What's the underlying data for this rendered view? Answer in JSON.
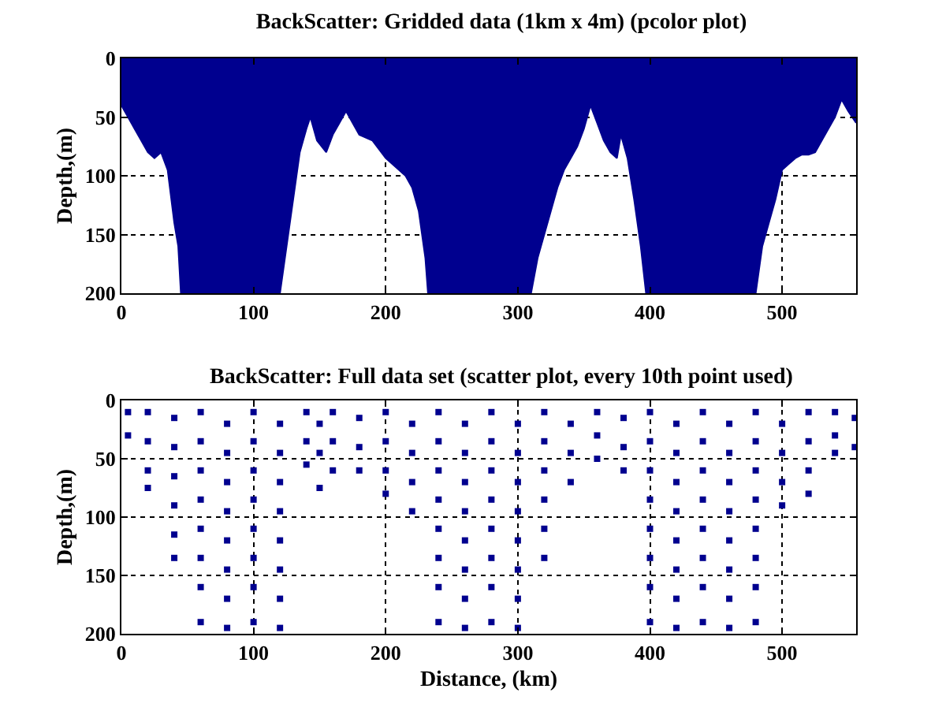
{
  "chart_data": [
    {
      "type": "area",
      "title": "BackScatter: Gridded data (1km x 4m) (pcolor plot)",
      "ylabel": "Depth,(m)",
      "x": [
        0,
        5,
        10,
        15,
        20,
        25,
        30,
        35,
        40,
        43,
        45,
        120,
        125,
        130,
        135,
        140,
        143,
        148,
        155,
        160,
        165,
        170,
        175,
        180,
        190,
        200,
        210,
        215,
        220,
        225,
        230,
        232,
        310,
        315,
        320,
        325,
        330,
        335,
        340,
        345,
        350,
        355,
        360,
        365,
        370,
        375,
        378,
        383,
        388,
        393,
        397,
        480,
        485,
        490,
        495,
        500,
        505,
        510,
        515,
        520,
        525,
        530,
        540,
        545,
        550,
        556
      ],
      "values": [
        40,
        50,
        60,
        70,
        80,
        85,
        80,
        95,
        140,
        160,
        200,
        200,
        160,
        120,
        80,
        60,
        50,
        70,
        80,
        65,
        55,
        45,
        55,
        65,
        70,
        85,
        95,
        100,
        110,
        130,
        170,
        200,
        200,
        170,
        150,
        130,
        110,
        95,
        85,
        75,
        60,
        40,
        55,
        70,
        80,
        85,
        65,
        85,
        120,
        160,
        200,
        200,
        160,
        140,
        120,
        95,
        90,
        85,
        82,
        82,
        80,
        70,
        50,
        35,
        45,
        55
      ],
      "color": "#00008f",
      "xlim": [
        0,
        556
      ],
      "ylim": [
        200,
        0
      ],
      "xticks": [
        0,
        100,
        200,
        300,
        400,
        500
      ],
      "yticks": [
        0,
        50,
        100,
        150,
        200
      ],
      "grid": true,
      "line_style": "dotted"
    },
    {
      "type": "scatter",
      "title": "BackScatter: Full data set (scatter plot, every 10th point used)",
      "xlabel": "Distance, (km)",
      "ylabel": "Depth,(m)",
      "x": [
        5,
        5,
        20,
        20,
        20,
        20,
        40,
        40,
        40,
        40,
        40,
        40,
        60,
        60,
        60,
        60,
        60,
        60,
        60,
        60,
        80,
        80,
        80,
        80,
        80,
        80,
        80,
        80,
        100,
        100,
        100,
        100,
        100,
        100,
        100,
        100,
        120,
        120,
        120,
        120,
        120,
        120,
        120,
        120,
        140,
        140,
        140,
        150,
        150,
        150,
        160,
        160,
        160,
        180,
        180,
        180,
        200,
        200,
        200,
        200,
        220,
        220,
        220,
        220,
        240,
        240,
        240,
        240,
        240,
        240,
        240,
        240,
        260,
        260,
        260,
        260,
        260,
        260,
        260,
        260,
        280,
        280,
        280,
        280,
        280,
        280,
        280,
        280,
        300,
        300,
        300,
        300,
        300,
        300,
        300,
        300,
        320,
        320,
        320,
        320,
        320,
        320,
        340,
        340,
        340,
        360,
        360,
        360,
        380,
        380,
        380,
        400,
        400,
        400,
        400,
        400,
        400,
        400,
        400,
        420,
        420,
        420,
        420,
        420,
        420,
        420,
        420,
        440,
        440,
        440,
        440,
        440,
        440,
        440,
        440,
        460,
        460,
        460,
        460,
        460,
        460,
        460,
        460,
        480,
        480,
        480,
        480,
        480,
        480,
        480,
        480,
        500,
        500,
        500,
        500,
        520,
        520,
        520,
        520,
        540,
        540,
        540,
        555,
        555
      ],
      "values": [
        10,
        30,
        10,
        35,
        60,
        75,
        15,
        40,
        65,
        90,
        115,
        135,
        10,
        35,
        60,
        85,
        110,
        135,
        160,
        190,
        20,
        45,
        70,
        95,
        120,
        145,
        170,
        195,
        10,
        35,
        60,
        85,
        110,
        135,
        160,
        190,
        20,
        45,
        70,
        95,
        120,
        145,
        170,
        195,
        10,
        35,
        55,
        20,
        45,
        75,
        10,
        35,
        60,
        15,
        40,
        60,
        10,
        35,
        60,
        80,
        20,
        45,
        70,
        95,
        10,
        35,
        60,
        85,
        110,
        135,
        160,
        190,
        20,
        45,
        70,
        95,
        120,
        145,
        170,
        195,
        10,
        35,
        60,
        85,
        110,
        135,
        160,
        190,
        20,
        45,
        70,
        95,
        120,
        145,
        170,
        195,
        10,
        35,
        60,
        85,
        110,
        135,
        20,
        45,
        70,
        10,
        30,
        50,
        15,
        40,
        60,
        10,
        35,
        60,
        85,
        110,
        135,
        160,
        190,
        20,
        45,
        70,
        95,
        120,
        145,
        170,
        195,
        10,
        35,
        60,
        85,
        110,
        135,
        160,
        190,
        20,
        45,
        70,
        95,
        120,
        145,
        170,
        195,
        10,
        35,
        60,
        85,
        110,
        135,
        160,
        190,
        20,
        45,
        70,
        90,
        10,
        35,
        60,
        80,
        10,
        30,
        45,
        15,
        40
      ],
      "color": "#00008f",
      "marker": "square",
      "xlim": [
        0,
        556
      ],
      "ylim": [
        200,
        0
      ],
      "xticks": [
        0,
        100,
        200,
        300,
        400,
        500
      ],
      "yticks": [
        0,
        50,
        100,
        150,
        200
      ],
      "grid": true,
      "line_style": "dotted"
    }
  ]
}
